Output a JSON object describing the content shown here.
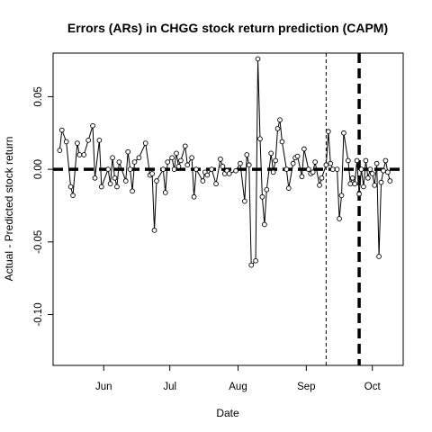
{
  "chart_data": {
    "type": "line",
    "title": "Errors (ARs) in CHGG stock return prediction (CAPM)",
    "xlabel": "Date",
    "ylabel": "Actual - Predicted stock return",
    "x_tick_labels": [
      "Jun",
      "Jul",
      "Aug",
      "Sep",
      "Oct"
    ],
    "x_tick_dates": [
      "2017-06-01",
      "2017-07-01",
      "2017-08-01",
      "2017-09-01",
      "2017-10-01"
    ],
    "xlim": [
      "2017-05-09",
      "2017-10-15"
    ],
    "y_ticks": [
      -0.1,
      -0.05,
      0.0,
      0.05
    ],
    "y_tick_labels": [
      "-0.10",
      "-0.05",
      "0.00",
      "0.05"
    ],
    "ylim": [
      -0.135,
      0.08
    ],
    "horizontal_reference_line": {
      "y": 0,
      "style": "thick dashed"
    },
    "vertical_reference_lines": [
      {
        "date": "2017-09-10",
        "style": "thin dashed"
      },
      {
        "date": "2017-09-25",
        "style": "thick dashed"
      }
    ],
    "grid": false,
    "series": [
      {
        "marker": "open circle",
        "line": "solid",
        "points": [
          {
            "x": "2017-05-12",
            "y": 0.013
          },
          {
            "x": "2017-05-13",
            "y": 0.027
          },
          {
            "x": "2017-05-15",
            "y": 0.019
          },
          {
            "x": "2017-05-17",
            "y": -0.012
          },
          {
            "x": "2017-05-18",
            "y": -0.018
          },
          {
            "x": "2017-05-20",
            "y": 0.018
          },
          {
            "x": "2017-05-21",
            "y": 0.01
          },
          {
            "x": "2017-05-23",
            "y": 0.01
          },
          {
            "x": "2017-05-25",
            "y": 0.02
          },
          {
            "x": "2017-05-27",
            "y": 0.03
          },
          {
            "x": "2017-05-28",
            "y": -0.006
          },
          {
            "x": "2017-05-30",
            "y": 0.02
          },
          {
            "x": "2017-05-31",
            "y": -0.012
          },
          {
            "x": "2017-06-03",
            "y": 0.0
          },
          {
            "x": "2017-06-04",
            "y": -0.01
          },
          {
            "x": "2017-06-05",
            "y": 0.008
          },
          {
            "x": "2017-06-06",
            "y": -0.006
          },
          {
            "x": "2017-06-07",
            "y": -0.012
          },
          {
            "x": "2017-06-08",
            "y": 0.005
          },
          {
            "x": "2017-06-11",
            "y": -0.008
          },
          {
            "x": "2017-06-12",
            "y": 0.012
          },
          {
            "x": "2017-06-13",
            "y": 0.0
          },
          {
            "x": "2017-06-14",
            "y": -0.015
          },
          {
            "x": "2017-06-15",
            "y": 0.005
          },
          {
            "x": "2017-06-17",
            "y": 0.008
          },
          {
            "x": "2017-06-20",
            "y": 0.018
          },
          {
            "x": "2017-06-22",
            "y": -0.004
          },
          {
            "x": "2017-06-23",
            "y": -0.003
          },
          {
            "x": "2017-06-24",
            "y": -0.042
          },
          {
            "x": "2017-06-25",
            "y": -0.008
          },
          {
            "x": "2017-06-28",
            "y": 0.0
          },
          {
            "x": "2017-06-29",
            "y": -0.016
          },
          {
            "x": "2017-06-30",
            "y": 0.005
          },
          {
            "x": "2017-07-02",
            "y": 0.008
          },
          {
            "x": "2017-07-03",
            "y": 0.0
          },
          {
            "x": "2017-07-04",
            "y": 0.011
          },
          {
            "x": "2017-07-05",
            "y": 0.002
          },
          {
            "x": "2017-07-06",
            "y": 0.006
          },
          {
            "x": "2017-07-08",
            "y": 0.016
          },
          {
            "x": "2017-07-09",
            "y": 0.003
          },
          {
            "x": "2017-07-11",
            "y": 0.008
          },
          {
            "x": "2017-07-12",
            "y": -0.019
          },
          {
            "x": "2017-07-13",
            "y": 0.0
          },
          {
            "x": "2017-07-16",
            "y": -0.008
          },
          {
            "x": "2017-07-17",
            "y": -0.002
          },
          {
            "x": "2017-07-18",
            "y": -0.004
          },
          {
            "x": "2017-07-20",
            "y": 0.0
          },
          {
            "x": "2017-07-22",
            "y": -0.01
          },
          {
            "x": "2017-07-24",
            "y": 0.007
          },
          {
            "x": "2017-07-25",
            "y": 0.002
          },
          {
            "x": "2017-07-26",
            "y": -0.003
          },
          {
            "x": "2017-07-27",
            "y": -0.001
          },
          {
            "x": "2017-07-28",
            "y": -0.003
          },
          {
            "x": "2017-07-31",
            "y": -0.001
          },
          {
            "x": "2017-08-02",
            "y": 0.004
          },
          {
            "x": "2017-08-04",
            "y": -0.022
          },
          {
            "x": "2017-08-05",
            "y": 0.01
          },
          {
            "x": "2017-08-06",
            "y": 0.003
          },
          {
            "x": "2017-08-07",
            "y": -0.066
          },
          {
            "x": "2017-08-09",
            "y": -0.063
          },
          {
            "x": "2017-08-10",
            "y": 0.076
          },
          {
            "x": "2017-08-11",
            "y": 0.021
          },
          {
            "x": "2017-08-12",
            "y": -0.019
          },
          {
            "x": "2017-08-13",
            "y": -0.038
          },
          {
            "x": "2017-08-14",
            "y": -0.014
          },
          {
            "x": "2017-08-16",
            "y": 0.011
          },
          {
            "x": "2017-08-17",
            "y": -0.002
          },
          {
            "x": "2017-08-18",
            "y": 0.006
          },
          {
            "x": "2017-08-19",
            "y": 0.028
          },
          {
            "x": "2017-08-20",
            "y": 0.034
          },
          {
            "x": "2017-08-21",
            "y": 0.019
          },
          {
            "x": "2017-08-23",
            "y": 0.0
          },
          {
            "x": "2017-08-24",
            "y": -0.013
          },
          {
            "x": "2017-08-26",
            "y": 0.004
          },
          {
            "x": "2017-08-27",
            "y": 0.008
          },
          {
            "x": "2017-08-28",
            "y": 0.009
          },
          {
            "x": "2017-08-30",
            "y": -0.005
          },
          {
            "x": "2017-08-31",
            "y": 0.014
          },
          {
            "x": "2017-09-02",
            "y": 0.0
          },
          {
            "x": "2017-09-03",
            "y": -0.003
          },
          {
            "x": "2017-09-04",
            "y": -0.002
          },
          {
            "x": "2017-09-05",
            "y": 0.005
          },
          {
            "x": "2017-09-07",
            "y": -0.011
          },
          {
            "x": "2017-09-08",
            "y": -0.006
          },
          {
            "x": "2017-09-10",
            "y": 0.003
          },
          {
            "x": "2017-09-11",
            "y": 0.026
          },
          {
            "x": "2017-09-12",
            "y": 0.004
          },
          {
            "x": "2017-09-13",
            "y": 0.0
          },
          {
            "x": "2017-09-15",
            "y": 0.0
          },
          {
            "x": "2017-09-16",
            "y": -0.034
          },
          {
            "x": "2017-09-17",
            "y": -0.018
          },
          {
            "x": "2017-09-18",
            "y": 0.025
          },
          {
            "x": "2017-09-20",
            "y": 0.006
          },
          {
            "x": "2017-09-21",
            "y": -0.01
          },
          {
            "x": "2017-09-22",
            "y": -0.006
          },
          {
            "x": "2017-09-23",
            "y": -0.01
          },
          {
            "x": "2017-09-24",
            "y": 0.006
          },
          {
            "x": "2017-09-25",
            "y": -0.017
          },
          {
            "x": "2017-09-26",
            "y": 0.0
          },
          {
            "x": "2017-09-27",
            "y": -0.012
          },
          {
            "x": "2017-09-28",
            "y": 0.006
          },
          {
            "x": "2017-09-29",
            "y": -0.006
          },
          {
            "x": "2017-09-30",
            "y": 0.0
          },
          {
            "x": "2017-10-01",
            "y": -0.003
          },
          {
            "x": "2017-10-02",
            "y": -0.011
          },
          {
            "x": "2017-10-03",
            "y": 0.004
          },
          {
            "x": "2017-10-04",
            "y": -0.06
          },
          {
            "x": "2017-10-05",
            "y": -0.009
          },
          {
            "x": "2017-10-06",
            "y": -0.001
          },
          {
            "x": "2017-10-07",
            "y": 0.006
          },
          {
            "x": "2017-10-08",
            "y": -0.002
          },
          {
            "x": "2017-10-09",
            "y": -0.008
          }
        ]
      }
    ]
  }
}
